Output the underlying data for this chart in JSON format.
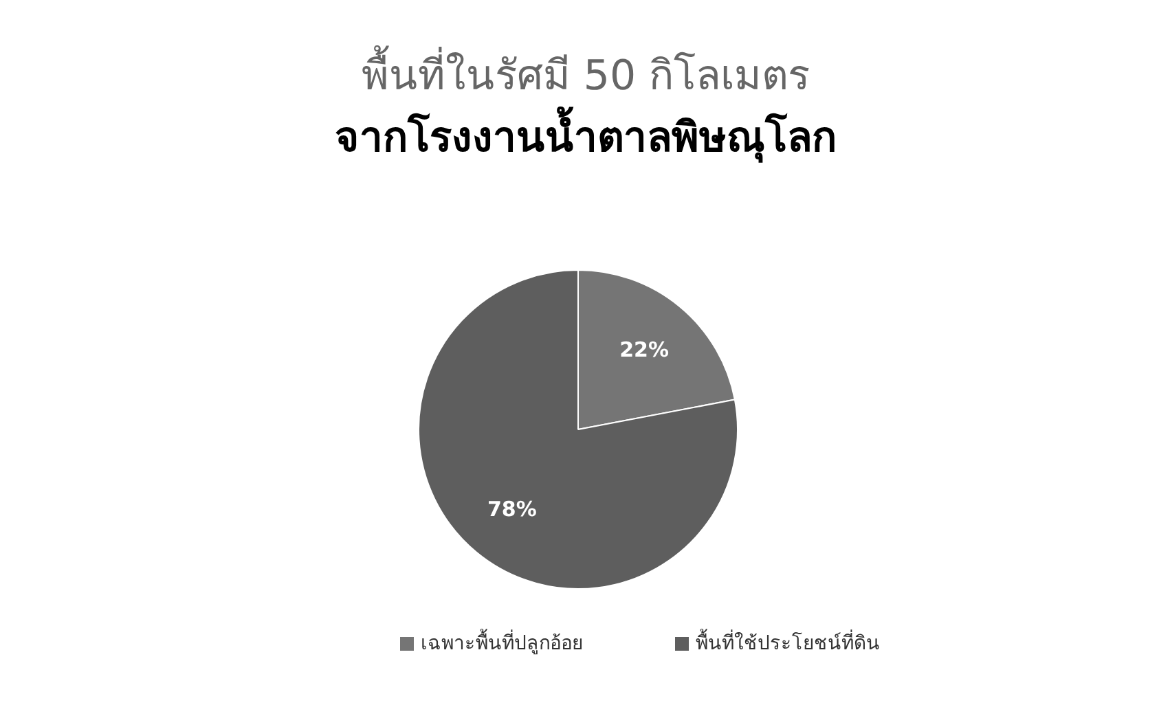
{
  "chart_data": {
    "type": "pie",
    "title": "พื้นที่ในรัศมี 50 กิโลเมตร",
    "subtitle": "จากโรงงานน้ำตาลพิษณุโลก",
    "categories": [
      "เฉพาะพื้นที่ปลูกอ้อย",
      "พื้นที่ใช้ประโยชน์ที่ดิน"
    ],
    "values": [
      22,
      78
    ],
    "colors": [
      "#757575",
      "#5e5e5e"
    ],
    "value_labels": [
      "22%",
      "78%"
    ],
    "legend": "bottom"
  }
}
